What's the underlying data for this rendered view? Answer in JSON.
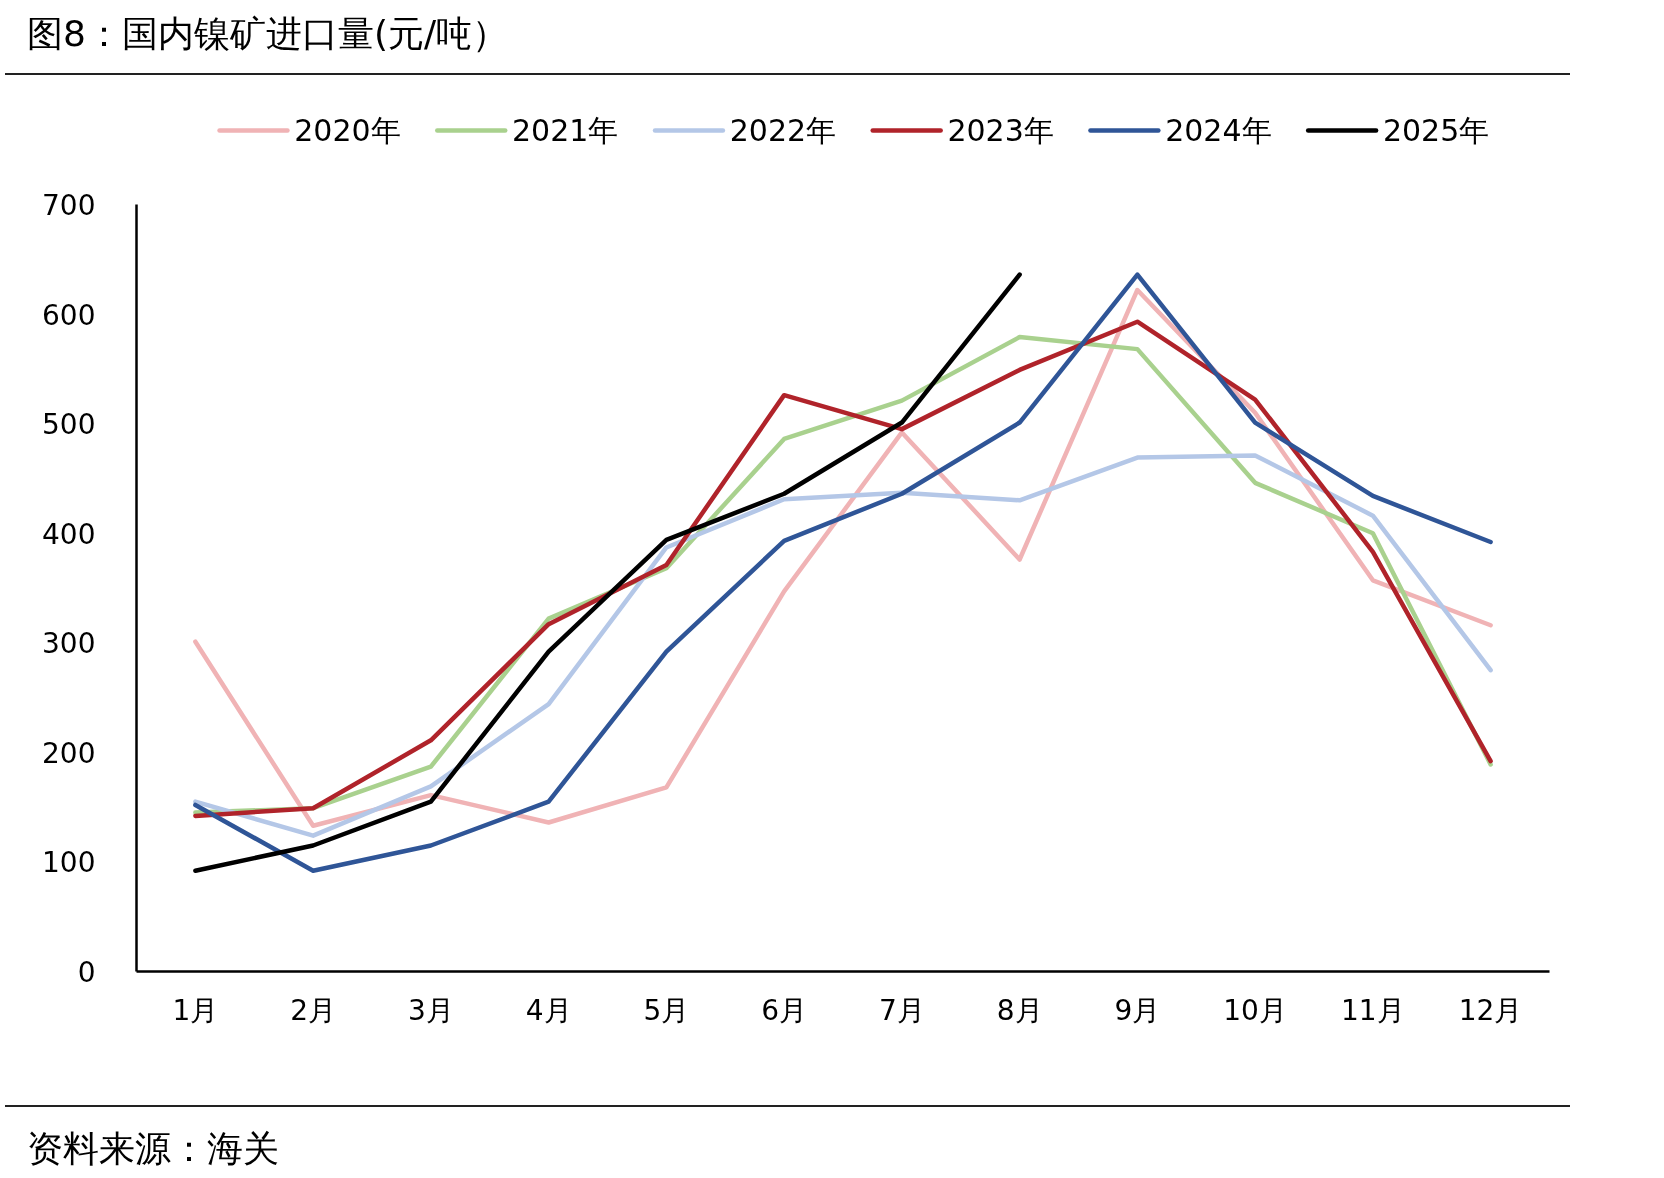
{
  "chart_data": {
    "type": "line",
    "title": "图8：国内镍矿进口量(元/吨）",
    "annotations": [
      "资料来源：海关"
    ],
    "categories": [
      "1月",
      "2月",
      "3月",
      "4月",
      "5月",
      "6月",
      "7月",
      "8月",
      "9月",
      "10月",
      "11月",
      "12月"
    ],
    "ylim": [
      0,
      700
    ],
    "yticks": [
      0,
      100,
      200,
      300,
      400,
      500,
      600,
      700
    ],
    "grid": false,
    "legend": "top",
    "marker": "none",
    "line_style": "solid",
    "series": [
      {
        "name": "2020年",
        "color": "#f0b3b5",
        "values": [
          301,
          133,
          161,
          136,
          168,
          347,
          492,
          376,
          622,
          510,
          357,
          316
        ]
      },
      {
        "name": "2021年",
        "color": "#a9d18e",
        "values": [
          145,
          149,
          187,
          322,
          368,
          486,
          521,
          579,
          568,
          446,
          400,
          189
        ]
      },
      {
        "name": "2022年",
        "color": "#b4c7e7",
        "values": [
          155,
          124,
          169,
          244,
          387,
          431,
          437,
          430,
          469,
          471,
          416,
          275
        ]
      },
      {
        "name": "2023年",
        "color": "#b0232a",
        "values": [
          142,
          149,
          211,
          317,
          371,
          526,
          495,
          549,
          593,
          522,
          383,
          192
        ]
      },
      {
        "name": "2024年",
        "color": "#2f5597",
        "values": [
          152,
          92,
          115,
          155,
          292,
          393,
          436,
          501,
          636,
          501,
          434,
          392
        ]
      },
      {
        "name": "2025年",
        "color": "#000000",
        "values": [
          92,
          115,
          155,
          292,
          394,
          436,
          501,
          636,
          null,
          null,
          null,
          null
        ]
      }
    ]
  }
}
